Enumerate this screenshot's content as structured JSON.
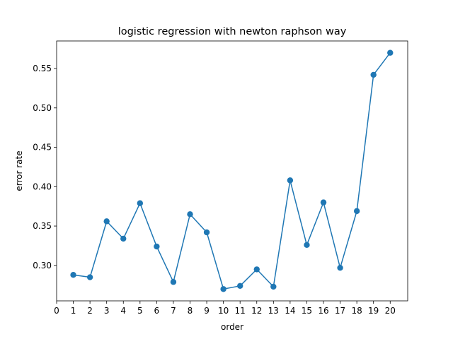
{
  "chart_data": {
    "type": "line",
    "title": "logistic regression with newton raphson way",
    "xlabel": "order",
    "ylabel": "error rate",
    "xlim": [
      0,
      21.05
    ],
    "ylim": [
      0.255,
      0.585
    ],
    "xticks": [
      0,
      1,
      2,
      3,
      4,
      5,
      6,
      7,
      8,
      9,
      10,
      11,
      12,
      13,
      14,
      15,
      16,
      17,
      18,
      19,
      20
    ],
    "yticks": [
      0.3,
      0.35,
      0.4,
      0.45,
      0.5,
      0.55
    ],
    "ytick_labels": [
      "0.30",
      "0.35",
      "0.40",
      "0.45",
      "0.50",
      "0.55"
    ],
    "grid": false,
    "series": [
      {
        "color": "#1f77b4",
        "marker": "circle",
        "x": [
          1,
          2,
          3,
          4,
          5,
          6,
          7,
          8,
          9,
          10,
          11,
          12,
          13,
          14,
          15,
          16,
          17,
          18,
          19,
          20
        ],
        "y": [
          0.288,
          0.285,
          0.356,
          0.334,
          0.379,
          0.324,
          0.279,
          0.365,
          0.342,
          0.27,
          0.274,
          0.295,
          0.273,
          0.408,
          0.326,
          0.38,
          0.297,
          0.369,
          0.542,
          0.57
        ]
      }
    ]
  }
}
